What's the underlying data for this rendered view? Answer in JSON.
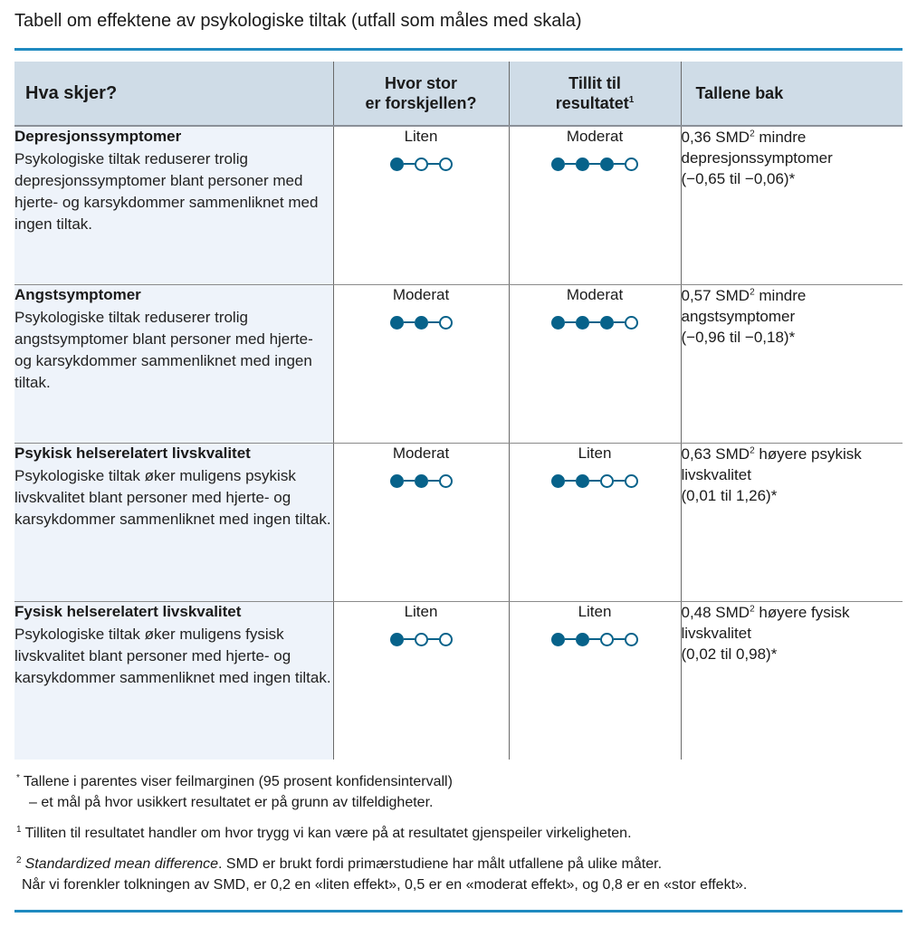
{
  "title": "Tabell om effektene av psykologiske tiltak (utfall som måles med skala)",
  "colors": {
    "accent_rule": "#1f8ac0",
    "dot": "#07628a",
    "header_bg": "#cfdce7",
    "first_col_bg": "#eef3fa"
  },
  "table": {
    "headers": {
      "outcome": "Hva skjer?",
      "size_line1": "Hvor stor",
      "size_line2": "er forskjellen?",
      "trust_line1": "Tillit til",
      "trust_line2": "resultatet",
      "trust_sup": "1",
      "numbers": "Tallene bak"
    },
    "rows": [
      {
        "outcome": "Depresjonssymptomer",
        "description": "Psykologiske tiltak reduserer trolig depresjonssymptomer blant personer med hjerte- og karsykdommer sammenliknet med ingen tiltak.",
        "size_label": "Liten",
        "size_dots": {
          "filled": 1,
          "total": 3
        },
        "trust_label": "Moderat",
        "trust_dots": {
          "filled": 3,
          "total": 4
        },
        "value_prefix": "0,36 SMD",
        "value_sup": "2",
        "value_suffix": " mindre depresjonssymptomer",
        "ci": "(−0,65 til −0,06)*"
      },
      {
        "outcome": "Angstsymptomer",
        "description": "Psykologiske tiltak reduserer trolig angstsymptomer blant personer med hjerte- og karsykdommer sammenliknet med ingen tiltak.",
        "size_label": "Moderat",
        "size_dots": {
          "filled": 2,
          "total": 3
        },
        "trust_label": "Moderat",
        "trust_dots": {
          "filled": 3,
          "total": 4
        },
        "value_prefix": "0,57 SMD",
        "value_sup": "2",
        "value_suffix": " mindre angstsymptomer",
        "ci": "(−0,96 til −0,18)*"
      },
      {
        "outcome": "Psykisk helserelatert livskvalitet",
        "description": "Psykologiske tiltak øker muligens psykisk livskvalitet blant personer med hjerte- og karsykdommer sammenliknet med ingen tiltak.",
        "size_label": "Moderat",
        "size_dots": {
          "filled": 2,
          "total": 3
        },
        "trust_label": "Liten",
        "trust_dots": {
          "filled": 2,
          "total": 4
        },
        "value_prefix": "0,63 SMD",
        "value_sup": "2",
        "value_suffix": " høyere psykisk livskvalitet",
        "ci": "(0,01 til 1,26)*"
      },
      {
        "outcome": "Fysisk helserelatert livskvalitet",
        "description": "Psykologiske tiltak øker muligens fysisk livskvalitet blant personer med hjerte- og karsykdommer sammenliknet med ingen tiltak.",
        "size_label": "Liten",
        "size_dots": {
          "filled": 1,
          "total": 3
        },
        "trust_label": "Liten",
        "trust_dots": {
          "filled": 2,
          "total": 4
        },
        "value_prefix": "0,48 SMD",
        "value_sup": "2",
        "value_suffix": " høyere fysisk livskvalitet",
        "ci": "(0,02 til 0,98)*"
      }
    ]
  },
  "footnotes": {
    "star": {
      "mark": "*",
      "line1": "Tallene i parentes viser feilmarginen (95 prosent konfidensintervall)",
      "line2": "– et mål på hvor usikkert resultatet er på grunn av tilfeldigheter."
    },
    "one": {
      "mark": "1",
      "text": "Tilliten til resultatet handler om hvor trygg vi kan være på at resultatet gjenspeiler virkeligheten."
    },
    "two": {
      "mark": "2",
      "italic": "Standardized mean difference",
      "line1_rest": ". SMD er brukt fordi primærstudiene har målt utfallene på ulike måter.",
      "line2": "Når vi forenkler tolkningen av SMD, er 0,2 en «liten effekt», 0,5 er en «moderat effekt», og 0,8 er en «stor effekt»."
    }
  }
}
